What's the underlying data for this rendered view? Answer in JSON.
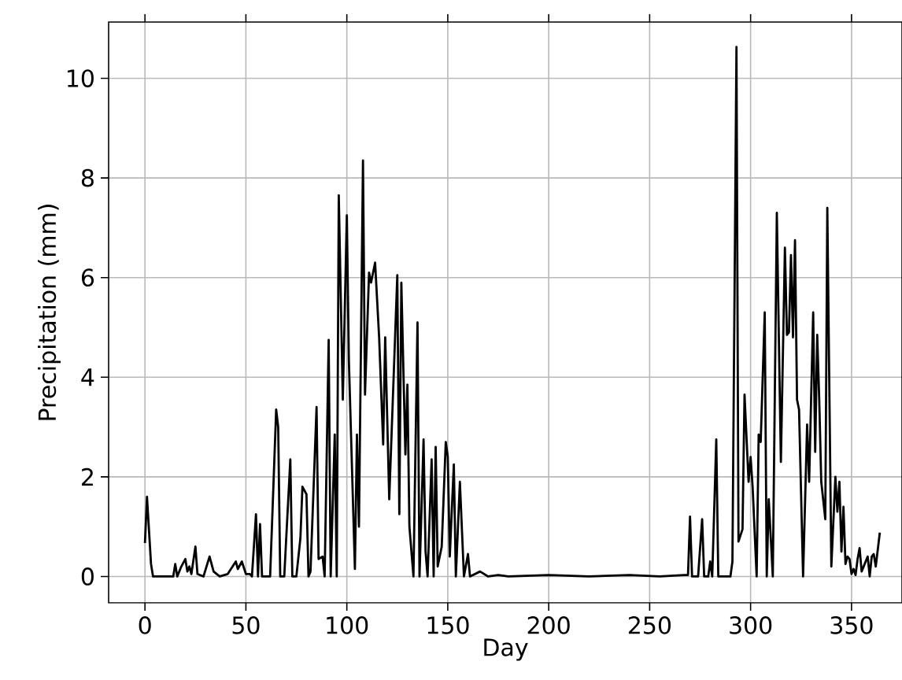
{
  "chart_data": {
    "type": "line",
    "xlabel": "Day",
    "ylabel": "Precipitation (mm)",
    "color": "#000000",
    "line_style": "solid",
    "marker": "none",
    "grid": true,
    "xlim": [
      -18,
      375
    ],
    "ylim": [
      -0.53,
      11.13
    ],
    "xticks": [
      0,
      50,
      100,
      150,
      200,
      250,
      300,
      350
    ],
    "yticks": [
      0,
      2,
      4,
      6,
      8,
      10
    ],
    "x": [
      0,
      1,
      3,
      4,
      14,
      15,
      16,
      18,
      20,
      21,
      22,
      23,
      25,
      26,
      29,
      32,
      34,
      37,
      41,
      45,
      46,
      48,
      50,
      52,
      53,
      55,
      56,
      57,
      58,
      62,
      65,
      66,
      67,
      69,
      72,
      73,
      75,
      77,
      78,
      80,
      81,
      82,
      85,
      86,
      88,
      89,
      91,
      92,
      94,
      95,
      96,
      98,
      100,
      101,
      104,
      105,
      106,
      108,
      109,
      111,
      112,
      114,
      116,
      118,
      119,
      121,
      125,
      126,
      127,
      129,
      130,
      131,
      133,
      135,
      136,
      138,
      139,
      140,
      142,
      143,
      144,
      145,
      147,
      149,
      150,
      151,
      153,
      154,
      156,
      158,
      160,
      161,
      166,
      170,
      175,
      180,
      200,
      220,
      240,
      255,
      267,
      269,
      270,
      271,
      274,
      276,
      277,
      279,
      280,
      281,
      283,
      284,
      290,
      291,
      293,
      294,
      296,
      297,
      299,
      300,
      301,
      303,
      304,
      305,
      307,
      308,
      309,
      311,
      313,
      315,
      317,
      318,
      319,
      320,
      321,
      322,
      323,
      324,
      326,
      328,
      329,
      331,
      332,
      333,
      334,
      335,
      337,
      338,
      340,
      342,
      343,
      344,
      345,
      346,
      347,
      348,
      349,
      350,
      351,
      352,
      353,
      354,
      355,
      358,
      359,
      360,
      361,
      362,
      364
    ],
    "values": [
      0.67,
      1.6,
      0.25,
      0,
      0,
      0.25,
      0,
      0.2,
      0.35,
      0.1,
      0.2,
      0.05,
      0.6,
      0.05,
      0,
      0.4,
      0.1,
      0,
      0.05,
      0.3,
      0.15,
      0.3,
      0.05,
      0.05,
      0,
      1.25,
      0,
      1.05,
      0,
      0,
      3.35,
      3.0,
      0,
      0,
      2.35,
      0,
      0,
      0.77,
      1.8,
      1.65,
      0,
      0.1,
      3.4,
      0.35,
      0.4,
      0,
      4.75,
      0,
      2.85,
      0,
      7.65,
      3.55,
      7.25,
      4.35,
      0.15,
      2.85,
      1.0,
      8.35,
      3.65,
      6.1,
      5.9,
      6.3,
      4.8,
      2.65,
      4.8,
      1.55,
      6.05,
      1.25,
      5.9,
      2.45,
      3.85,
      1.0,
      0,
      5.1,
      0,
      2.75,
      0.5,
      0,
      2.35,
      0,
      2.6,
      0.2,
      0.6,
      2.7,
      2.4,
      0.4,
      2.25,
      0,
      1.9,
      0,
      0.45,
      0,
      0.1,
      0,
      0.03,
      0,
      0.03,
      0,
      0.03,
      0,
      0.03,
      0.03,
      1.2,
      0,
      0,
      1.15,
      0,
      0,
      0.3,
      0,
      2.75,
      0,
      0,
      0.3,
      10.63,
      0.7,
      0.95,
      3.65,
      1.9,
      2.4,
      1.8,
      0,
      2.85,
      2.7,
      5.3,
      0,
      1.55,
      0,
      7.3,
      2.3,
      6.6,
      4.85,
      4.9,
      6.45,
      4.8,
      6.75,
      3.55,
      3.35,
      0,
      3.05,
      1.9,
      5.3,
      2.5,
      4.85,
      3.55,
      1.9,
      1.15,
      7.4,
      0.2,
      2.0,
      1.3,
      1.9,
      0.5,
      1.4,
      0.25,
      0.4,
      0.35,
      0.05,
      0.15,
      0.03,
      0.35,
      0.57,
      0.1,
      0.4,
      0,
      0.4,
      0.45,
      0.2,
      0.88
    ]
  }
}
